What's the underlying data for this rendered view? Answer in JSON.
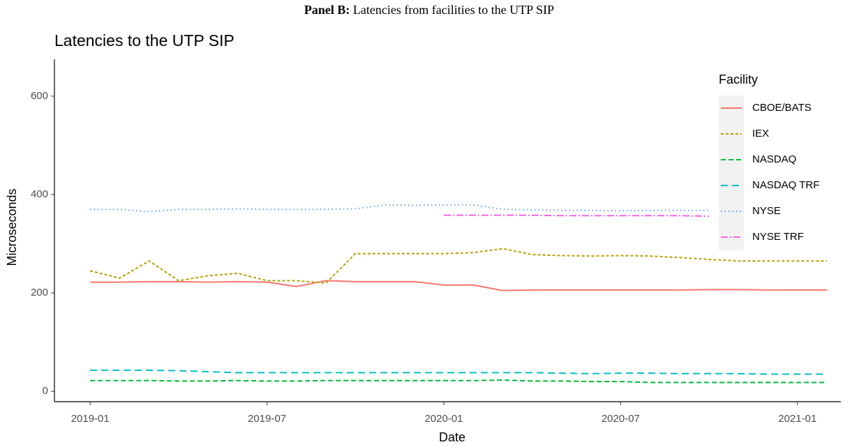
{
  "chart_data": {
    "type": "line",
    "panel_label": "Panel B:",
    "caption": "Latencies from facilities to the UTP SIP",
    "title": "Latencies to the UTP SIP",
    "x_label": "Date",
    "y_label": "Microseconds",
    "legend_title": "Facility",
    "legend": "right",
    "x": [
      "2019-01",
      "2019-02",
      "2019-03",
      "2019-04",
      "2019-05",
      "2019-06",
      "2019-07",
      "2019-08",
      "2019-09",
      "2019-10",
      "2019-11",
      "2019-12",
      "2020-01",
      "2020-02",
      "2020-03",
      "2020-04",
      "2020-05",
      "2020-06",
      "2020-07",
      "2020-08",
      "2020-09",
      "2020-10",
      "2020-11",
      "2020-12",
      "2021-01",
      "2021-02"
    ],
    "xlim": [
      "2018-12",
      "2021-02"
    ],
    "xticks": [
      "2019-01",
      "2019-07",
      "2020-01",
      "2020-07",
      "2021-01"
    ],
    "ylim": [
      -21,
      675
    ],
    "yticks": [
      0,
      200,
      400,
      600
    ],
    "series": [
      {
        "name": "CBOE/BATS",
        "color": "#F8766D",
        "linetype": "solid",
        "values": [
          222,
          222,
          223,
          223,
          222,
          223,
          222,
          213,
          225,
          223,
          223,
          223,
          216,
          216,
          205,
          206,
          206,
          206,
          206,
          206,
          206,
          207,
          207,
          206,
          206,
          206
        ]
      },
      {
        "name": "IEX",
        "color": "#B79F00",
        "linetype": "dotted",
        "values": [
          245,
          230,
          265,
          225,
          235,
          240,
          225,
          225,
          220,
          280,
          280,
          280,
          280,
          282,
          290,
          278,
          276,
          275,
          276,
          275,
          272,
          268,
          265,
          265,
          265,
          265
        ]
      },
      {
        "name": "NASDAQ",
        "color": "#00BA38",
        "linetype": "dashed",
        "values": [
          22,
          22,
          22,
          21,
          21,
          22,
          21,
          21,
          22,
          22,
          22,
          22,
          22,
          22,
          23,
          21,
          21,
          20,
          20,
          18,
          18,
          18,
          18,
          18,
          18,
          18
        ]
      },
      {
        "name": "NASDAQ TRF",
        "color": "#00BFC4",
        "linetype": "longdash",
        "values": [
          43,
          43,
          43,
          42,
          40,
          38,
          38,
          38,
          38,
          38,
          38,
          38,
          38,
          38,
          38,
          38,
          37,
          36,
          37,
          37,
          36,
          36,
          36,
          35,
          35,
          35
        ]
      },
      {
        "name": "NYSE",
        "color": "#619CFF",
        "linetype": "dotted-fine",
        "values": [
          370,
          370,
          365,
          370,
          370,
          371,
          370,
          370,
          370,
          371,
          379,
          378,
          379,
          379,
          370,
          369,
          368,
          368,
          367,
          368,
          368,
          368,
          null,
          null,
          null,
          null
        ]
      },
      {
        "name": "NYSE TRF",
        "color": "#F564E3",
        "linetype": "dotdash",
        "values": [
          null,
          null,
          null,
          null,
          null,
          null,
          null,
          null,
          null,
          null,
          null,
          null,
          358,
          358,
          358,
          358,
          357,
          357,
          357,
          357,
          357,
          356,
          null,
          null,
          null,
          null
        ]
      }
    ]
  }
}
